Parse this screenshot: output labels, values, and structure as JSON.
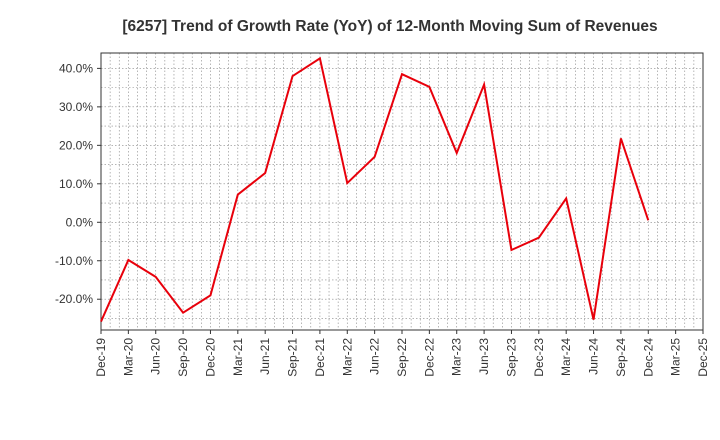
{
  "chart_data": {
    "type": "line",
    "title": "[6257]  Trend of Growth Rate (YoY) of 12-Month Moving Sum of Revenues",
    "xlabel": "",
    "ylabel": "",
    "ylim": [
      -28,
      44
    ],
    "y_ticks": [
      -20,
      -10,
      0,
      10,
      20,
      30,
      40
    ],
    "y_tick_labels": [
      "-20.0%",
      "-10.0%",
      "0.0%",
      "10.0%",
      "20.0%",
      "30.0%",
      "40.0%"
    ],
    "x_tick_labels": [
      "Dec-19",
      "Mar-20",
      "Jun-20",
      "Sep-20",
      "Dec-20",
      "Mar-21",
      "Jun-21",
      "Sep-21",
      "Dec-21",
      "Mar-22",
      "Jun-22",
      "Sep-22",
      "Dec-22",
      "Mar-23",
      "Jun-23",
      "Sep-23",
      "Dec-23",
      "Mar-24",
      "Jun-24",
      "Sep-24",
      "Dec-24",
      "Mar-25",
      "Dec-25"
    ],
    "grid": true,
    "series": [
      {
        "color": "#e8000b",
        "x": [
          "Dec-19",
          "Mar-20",
          "Jun-20",
          "Sep-20",
          "Dec-20",
          "Mar-21",
          "Jun-21",
          "Sep-21",
          "Dec-21",
          "Mar-22",
          "Jun-22",
          "Sep-22",
          "Dec-22",
          "Mar-23",
          "Jun-23",
          "Sep-23",
          "Dec-23",
          "Mar-24",
          "Jun-24",
          "Sep-24",
          "Dec-24"
        ],
        "values": [
          -25.8,
          -9.8,
          -14.2,
          -23.5,
          -19.0,
          7.2,
          12.8,
          38.0,
          42.6,
          10.2,
          17.0,
          38.5,
          35.2,
          18.0,
          35.8,
          -7.2,
          -4.0,
          6.2,
          -25.3,
          21.8,
          0.5
        ]
      }
    ]
  }
}
